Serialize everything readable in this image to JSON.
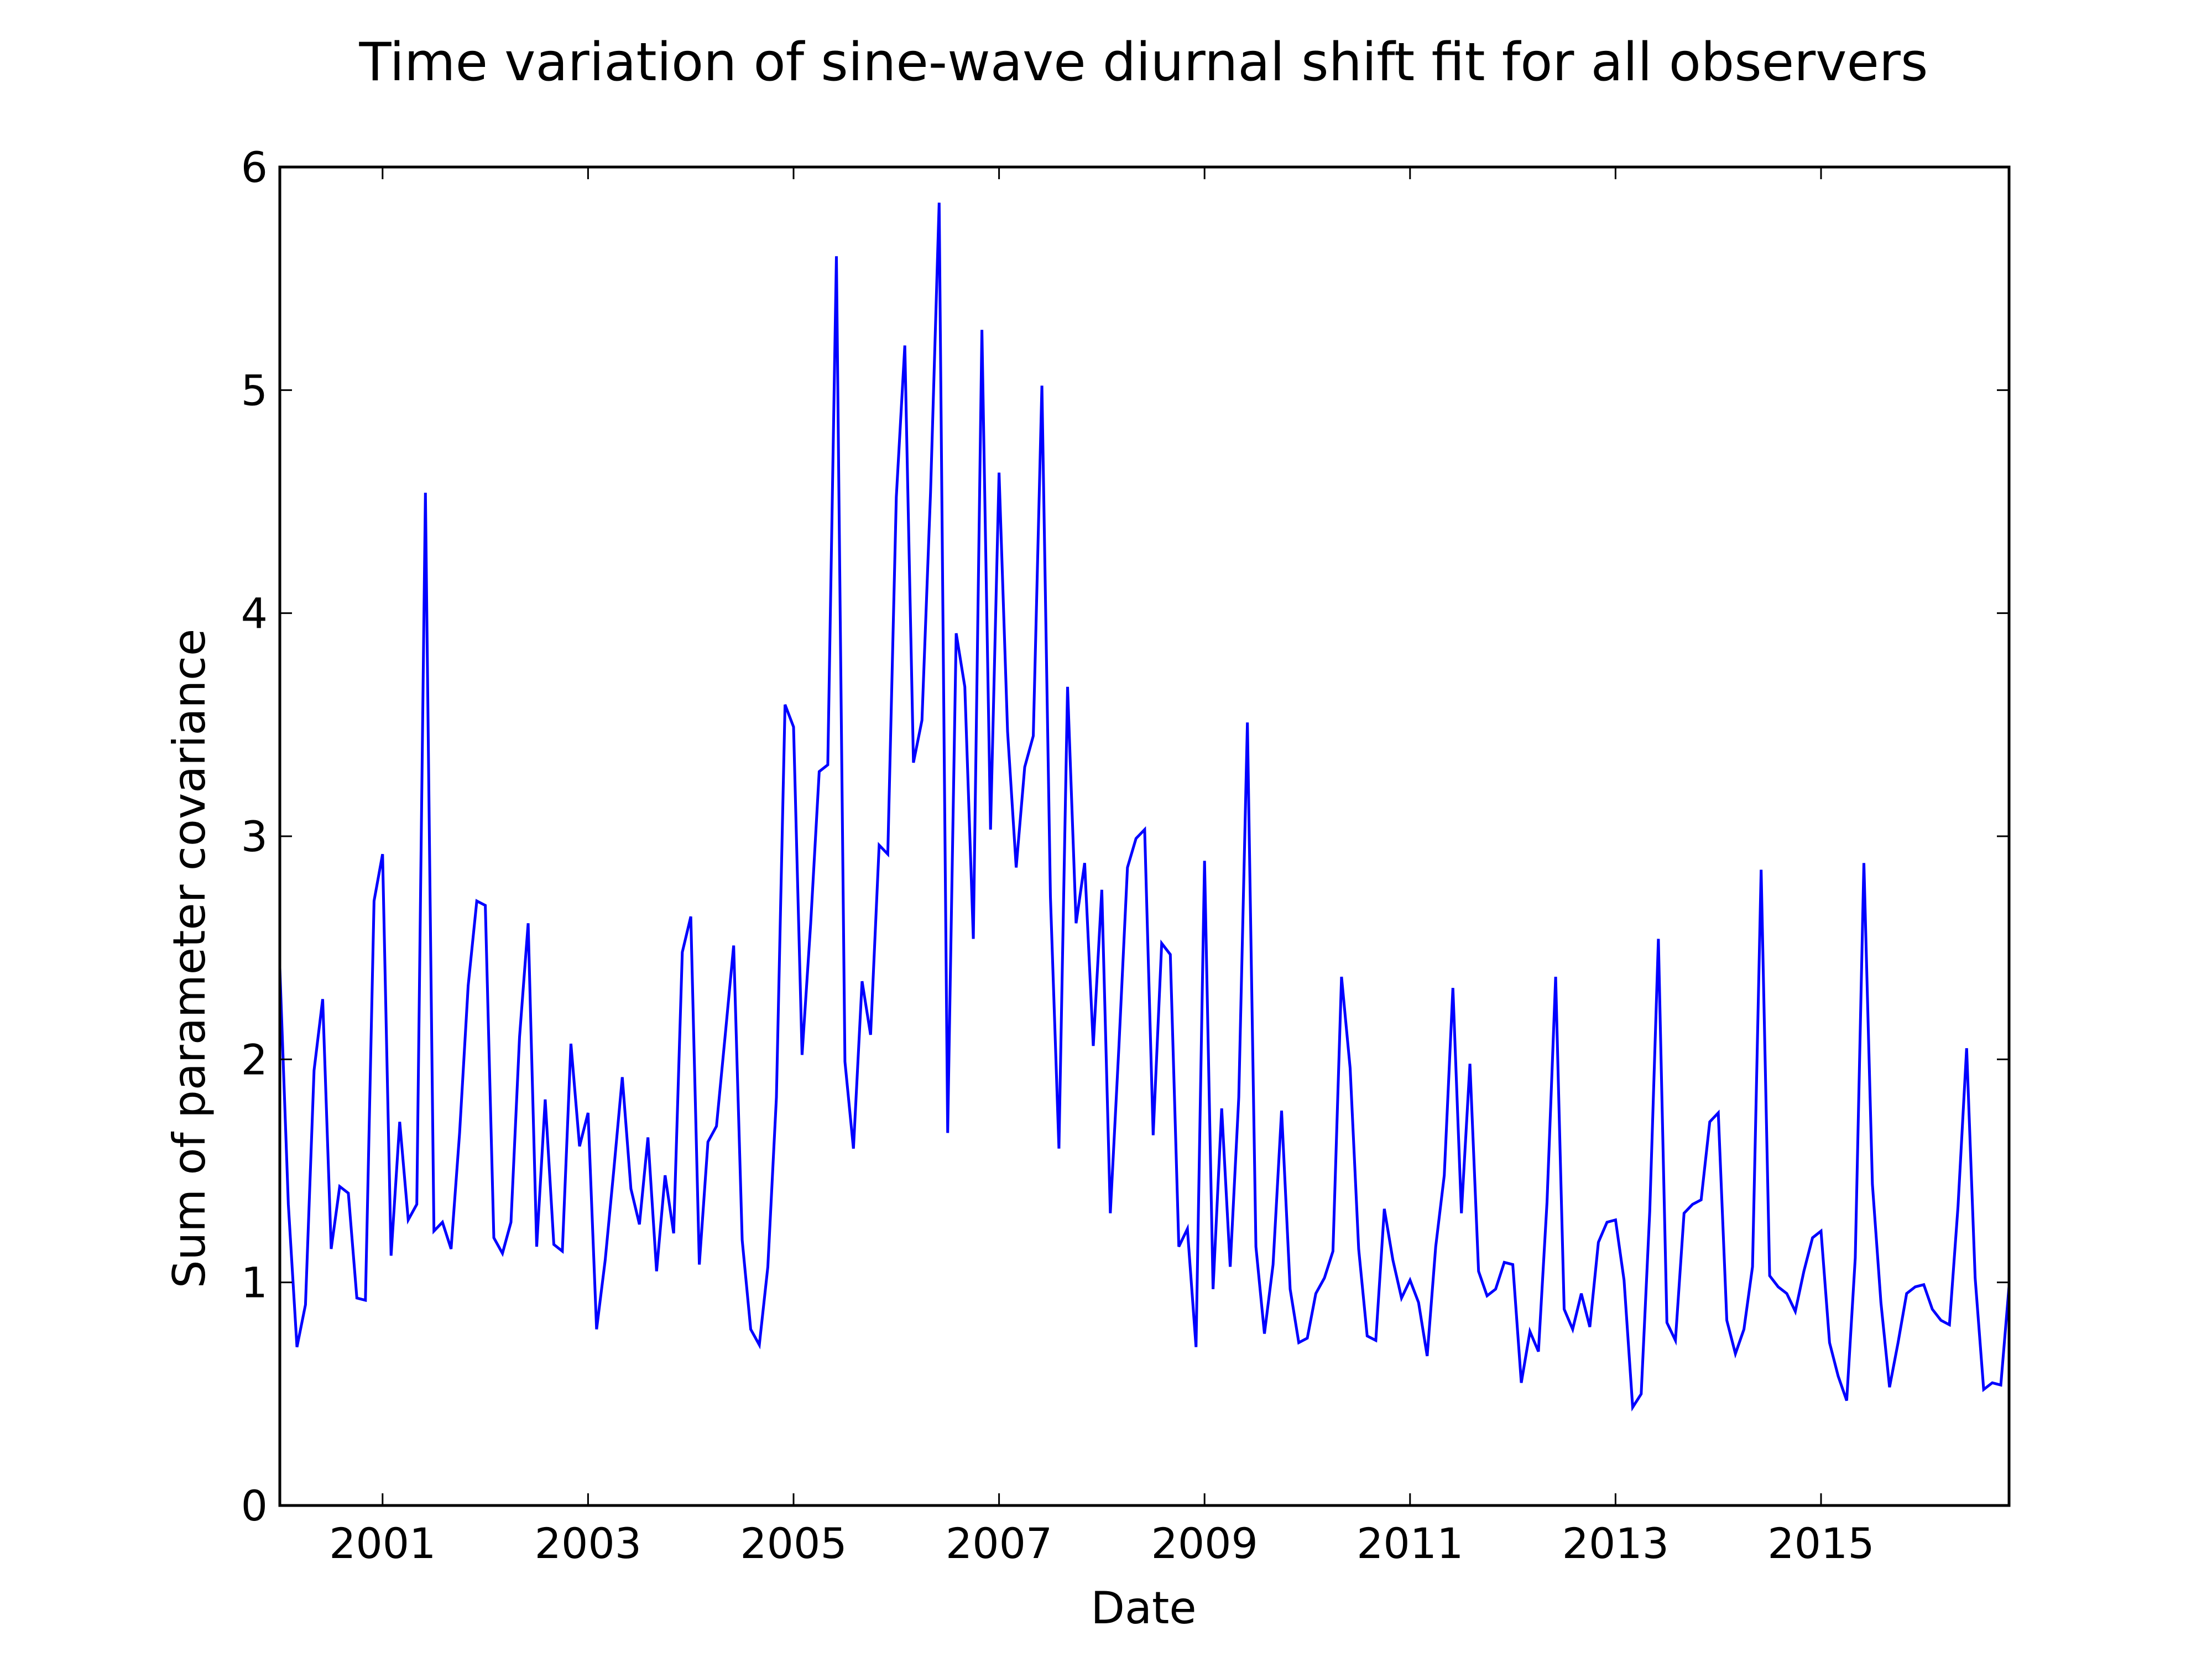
{
  "chart_data": {
    "type": "line",
    "title": "Time variation of sine-wave diurnal shift fit for all observers",
    "xlabel": "Date",
    "ylabel": "Sum of parameter covariance",
    "x_ticks": [
      "2001",
      "2003",
      "2005",
      "2007",
      "2009",
      "2011",
      "2013",
      "2015"
    ],
    "y_ticks": [
      "0",
      "1",
      "2",
      "3",
      "4",
      "5",
      "6"
    ],
    "xlim": [
      2000.0,
      2016.83
    ],
    "ylim": [
      0,
      6
    ],
    "grid": false,
    "legend": "none",
    "series": [
      {
        "color": "#0000ff",
        "x": [
          2000.0,
          2000.083,
          2000.167,
          2000.25,
          2000.333,
          2000.417,
          2000.5,
          2000.583,
          2000.667,
          2000.75,
          2000.833,
          2000.917,
          2001.0,
          2001.083,
          2001.167,
          2001.25,
          2001.333,
          2001.417,
          2001.5,
          2001.583,
          2001.667,
          2001.75,
          2001.833,
          2001.917,
          2002.0,
          2002.083,
          2002.167,
          2002.25,
          2002.333,
          2002.417,
          2002.5,
          2002.583,
          2002.667,
          2002.75,
          2002.833,
          2002.917,
          2003.0,
          2003.083,
          2003.167,
          2003.25,
          2003.333,
          2003.417,
          2003.5,
          2003.583,
          2003.667,
          2003.75,
          2003.833,
          2003.917,
          2004.0,
          2004.083,
          2004.167,
          2004.25,
          2004.333,
          2004.417,
          2004.5,
          2004.583,
          2004.667,
          2004.75,
          2004.833,
          2004.917,
          2005.0,
          2005.083,
          2005.167,
          2005.25,
          2005.333,
          2005.417,
          2005.5,
          2005.583,
          2005.667,
          2005.75,
          2005.833,
          2005.917,
          2006.0,
          2006.083,
          2006.167,
          2006.25,
          2006.333,
          2006.417,
          2006.5,
          2006.583,
          2006.667,
          2006.75,
          2006.833,
          2006.917,
          2007.0,
          2007.083,
          2007.167,
          2007.25,
          2007.333,
          2007.417,
          2007.5,
          2007.583,
          2007.667,
          2007.75,
          2007.833,
          2007.917,
          2008.0,
          2008.083,
          2008.167,
          2008.25,
          2008.333,
          2008.417,
          2008.5,
          2008.583,
          2008.667,
          2008.75,
          2008.833,
          2008.917,
          2009.0,
          2009.083,
          2009.167,
          2009.25,
          2009.333,
          2009.417,
          2009.5,
          2009.583,
          2009.667,
          2009.75,
          2009.833,
          2009.917,
          2010.0,
          2010.083,
          2010.167,
          2010.25,
          2010.333,
          2010.417,
          2010.5,
          2010.583,
          2010.667,
          2010.75,
          2010.833,
          2010.917,
          2011.0,
          2011.083,
          2011.167,
          2011.25,
          2011.333,
          2011.417,
          2011.5,
          2011.583,
          2011.667,
          2011.75,
          2011.833,
          2011.917,
          2012.0,
          2012.083,
          2012.167,
          2012.25,
          2012.333,
          2012.417,
          2012.5,
          2012.583,
          2012.667,
          2012.75,
          2012.833,
          2012.917,
          2013.0,
          2013.083,
          2013.167,
          2013.25,
          2013.333,
          2013.417,
          2013.5,
          2013.583,
          2013.667,
          2013.75,
          2013.833,
          2013.917,
          2014.0,
          2014.083,
          2014.167,
          2014.25,
          2014.333,
          2014.417,
          2014.5,
          2014.583,
          2014.667,
          2014.75,
          2014.833,
          2014.917,
          2015.0,
          2015.083,
          2015.167,
          2015.25,
          2015.333,
          2015.417,
          2015.5,
          2015.583,
          2015.667,
          2015.75,
          2015.833,
          2015.917,
          2016.0,
          2016.083,
          2016.167,
          2016.25,
          2016.333,
          2016.417,
          2016.5,
          2016.583,
          2016.667,
          2016.75,
          2016.833
        ],
        "y": [
          2.41,
          1.35,
          0.71,
          0.9,
          1.95,
          2.27,
          1.15,
          1.43,
          1.4,
          0.93,
          0.92,
          2.71,
          2.92,
          1.12,
          1.72,
          1.28,
          1.35,
          4.54,
          1.23,
          1.27,
          1.15,
          1.67,
          2.33,
          2.71,
          2.69,
          1.2,
          1.13,
          1.27,
          2.1,
          2.61,
          1.16,
          1.82,
          1.17,
          1.14,
          2.07,
          1.61,
          1.76,
          0.79,
          1.1,
          1.5,
          1.92,
          1.42,
          1.26,
          1.65,
          1.05,
          1.48,
          1.22,
          2.48,
          2.64,
          1.08,
          1.63,
          1.7,
          2.1,
          2.51,
          1.19,
          0.79,
          0.72,
          1.07,
          1.83,
          3.59,
          3.49,
          2.02,
          2.61,
          3.29,
          3.32,
          5.6,
          1.99,
          1.6,
          2.35,
          2.11,
          2.96,
          2.92,
          4.52,
          5.2,
          3.33,
          3.52,
          4.54,
          5.84,
          1.67,
          3.91,
          3.67,
          2.54,
          5.27,
          3.03,
          4.63,
          3.47,
          2.86,
          3.31,
          3.45,
          5.02,
          2.73,
          1.6,
          3.67,
          2.61,
          2.88,
          2.06,
          2.76,
          1.31,
          2.06,
          2.86,
          2.99,
          3.03,
          1.66,
          2.52,
          2.47,
          1.16,
          1.24,
          0.71,
          2.89,
          0.97,
          1.78,
          1.07,
          1.83,
          3.51,
          1.16,
          0.77,
          1.08,
          1.77,
          0.97,
          0.73,
          0.75,
          0.95,
          1.02,
          1.14,
          2.37,
          1.96,
          1.15,
          0.76,
          0.74,
          1.33,
          1.1,
          0.93,
          1.01,
          0.91,
          0.67,
          1.16,
          1.48,
          2.32,
          1.31,
          1.98,
          1.05,
          0.94,
          0.97,
          1.09,
          1.08,
          0.55,
          0.78,
          0.69,
          1.36,
          2.37,
          0.88,
          0.79,
          0.95,
          0.8,
          1.18,
          1.27,
          1.28,
          1.01,
          0.44,
          0.5,
          1.32,
          2.54,
          0.82,
          0.74,
          1.31,
          1.35,
          1.37,
          1.72,
          1.76,
          0.83,
          0.68,
          0.79,
          1.07,
          2.85,
          1.03,
          0.98,
          0.95,
          0.87,
          1.05,
          1.2,
          1.23,
          0.73,
          0.58,
          0.47,
          1.11,
          2.88,
          1.44,
          0.91,
          0.53,
          0.73,
          0.95,
          0.98,
          0.99,
          0.88,
          0.83,
          0.81,
          1.34,
          2.05,
          1.02,
          0.52,
          0.55,
          0.54,
          1.0
        ]
      }
    ]
  }
}
